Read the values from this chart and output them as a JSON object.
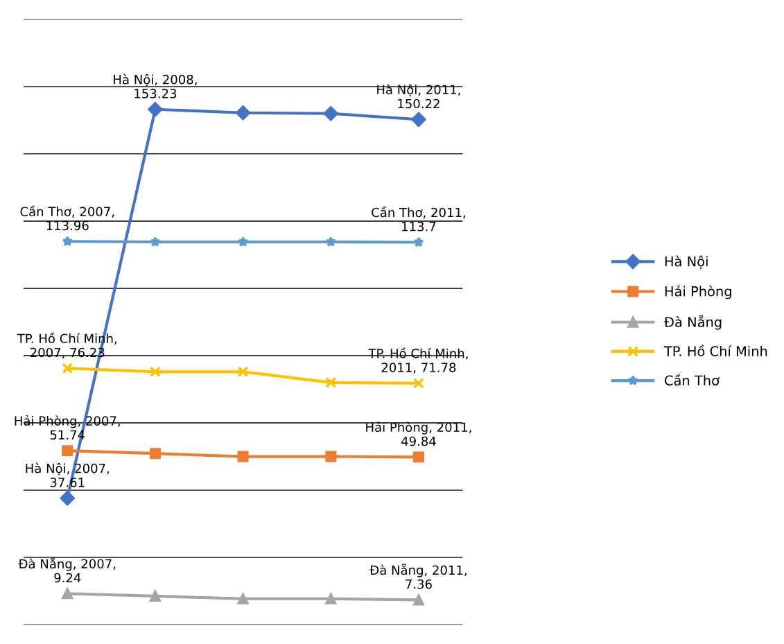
{
  "chart_data": {
    "type": "line",
    "categories": [
      null,
      null,
      null,
      null,
      null
    ],
    "series": [
      {
        "name": "Hà Nội",
        "color": "#4472c4",
        "marker": "diamond",
        "values": [
          37.61,
          153.23,
          152.2,
          152.0,
          150.22
        ],
        "value_labels": [
          "Hà Nội, 2007,\n37.61",
          "Hà Nội, 2008,\n153.23",
          null,
          null,
          "Hà Nội, 2011,\n150.22"
        ]
      },
      {
        "name": "Hải Phòng",
        "color": "#ed7d31",
        "marker": "square",
        "values": [
          51.74,
          50.9,
          50.0,
          50.0,
          49.84
        ],
        "value_labels": [
          "Hải Phòng, 2007,\n51.74",
          null,
          null,
          null,
          "Hải Phòng, 2011,\n49.84"
        ]
      },
      {
        "name": "Đà Nẵng",
        "color": "#a5a5a5",
        "marker": "triangle",
        "values": [
          9.24,
          8.5,
          7.7,
          7.7,
          7.36
        ],
        "value_labels": [
          "Đà Nẵng, 2007,\n9.24",
          null,
          null,
          null,
          "Đà Nẵng, 2011,\n7.36"
        ]
      },
      {
        "name": "TP. Hồ Chí Minh",
        "color": "#ffc000",
        "marker": "cross",
        "values": [
          76.23,
          75.2,
          75.2,
          72.0,
          71.78
        ],
        "value_labels": [
          "TP. Hồ Chí Minh,\n2007, 76.23",
          null,
          null,
          null,
          "TP. Hồ Chí Minh,\n2011, 71.78"
        ]
      },
      {
        "name": "Cần Thơ",
        "color": "#5b9bd5",
        "marker": "star",
        "values": [
          113.96,
          113.8,
          113.8,
          113.8,
          113.7
        ],
        "value_labels": [
          "Cần Thơ, 2007,\n113.96",
          null,
          null,
          null,
          "Cần Thơ, 2011,\n113.7"
        ]
      }
    ],
    "ylim": [
      0,
      180
    ],
    "yticks": [
      {
        "value": 0,
        "label": null
      },
      {
        "value": 20,
        "label": null
      },
      {
        "value": 40,
        "label": null
      },
      {
        "value": 60,
        "label": null
      },
      {
        "value": 80,
        "label": null
      },
      {
        "value": 100,
        "label": null
      },
      {
        "value": 120,
        "label": null
      },
      {
        "value": 140,
        "label": null
      },
      {
        "value": 160,
        "label": null
      },
      {
        "value": 180,
        "label": null
      }
    ],
    "grid": "y",
    "legend": "right",
    "line_style": "solid"
  }
}
